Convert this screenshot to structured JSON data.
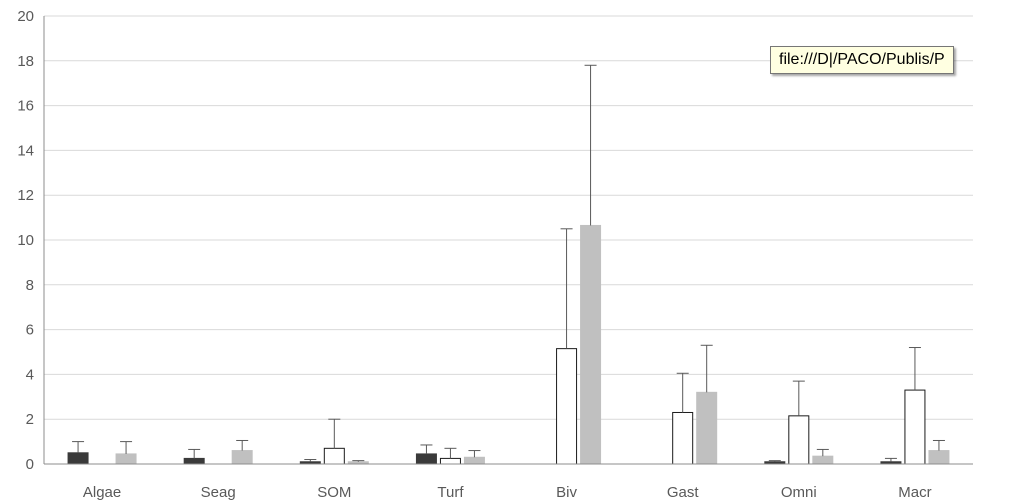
{
  "chart_data": {
    "type": "bar",
    "categories": [
      "Algae",
      "Seag",
      "SOM",
      "Turf",
      "Biv",
      "Gast",
      "Omni",
      "Macr"
    ],
    "ylim": [
      0,
      20
    ],
    "yticks": [
      0,
      2,
      4,
      6,
      8,
      10,
      12,
      14,
      16,
      18,
      20
    ],
    "grid": true,
    "series": [
      {
        "fill": "#3a3a3a",
        "stroke": "#3a3a3a",
        "values": [
          0.5,
          0.25,
          0.1,
          0.45,
          null,
          null,
          0.1,
          0.1
        ],
        "error": [
          0.5,
          0.4,
          0.1,
          0.4,
          null,
          null,
          0.05,
          0.15
        ]
      },
      {
        "fill": "#ffffff",
        "stroke": "#1a1a1a",
        "values": [
          null,
          null,
          0.7,
          0.25,
          5.15,
          2.3,
          2.15,
          3.3
        ],
        "error": [
          null,
          null,
          1.3,
          0.45,
          5.35,
          1.75,
          1.55,
          1.9
        ]
      },
      {
        "fill": "#c0c0c0",
        "stroke": "#c0c0c0",
        "values": [
          0.45,
          0.6,
          0.1,
          0.3,
          10.65,
          3.2,
          0.35,
          0.6
        ],
        "error": [
          0.55,
          0.45,
          0.05,
          0.3,
          7.15,
          2.1,
          0.3,
          0.45
        ]
      }
    ]
  },
  "tooltip": {
    "text": "file:///D|/PACO/Publis/P"
  },
  "colors": {
    "grid": "#d9d9d9",
    "axis": "#8c8c8c",
    "error_bar": "#595959"
  }
}
